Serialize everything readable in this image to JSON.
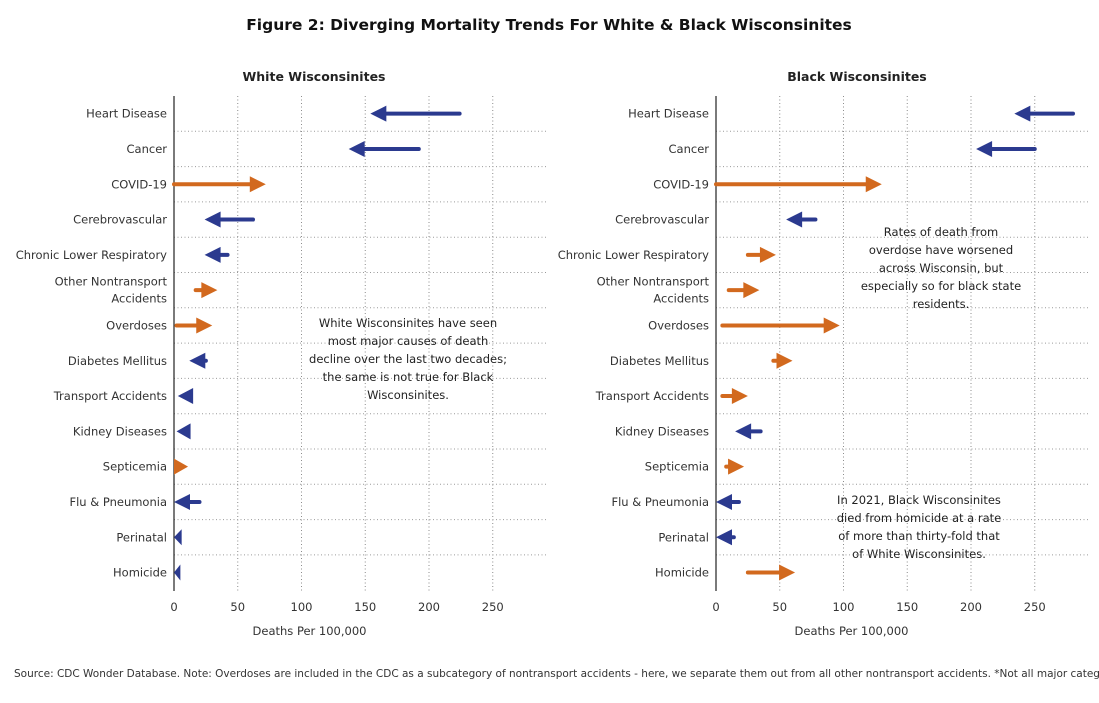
{
  "title": "Figure 2: Diverging Mortality Trends For White & Black Wisconsinites",
  "source": "Source: CDC Wonder Database. Note: Overdoses are included in the CDC as a subcategory of nontransport accidents - here, we separate them out from all other nontransport accidents. *Not all major categori..",
  "colors": {
    "decrease": "#2b3a8f",
    "increase": "#d2691e"
  },
  "chart_data": [
    {
      "type": "arrow",
      "title": "White Wisconsinites",
      "xlabel": "Deaths Per 100,000",
      "xlim": [
        0,
        290
      ],
      "xticks": [
        0,
        50,
        100,
        150,
        200,
        250
      ],
      "grid": true,
      "categories": [
        "Heart Disease",
        "Cancer",
        "COVID-19",
        "Cerebrovascular",
        "Chronic Lower Respiratory",
        "Other Nontransport Accidents",
        "Overdoses",
        "Diabetes Mellitus",
        "Transport Accidents",
        "Kidney Diseases",
        "Septicemia",
        "Flu & Pneumonia",
        "Perinatal",
        "Homicide"
      ],
      "category_lines": [
        [
          "Heart Disease"
        ],
        [
          "Cancer"
        ],
        [
          "COVID-19"
        ],
        [
          "Cerebrovascular"
        ],
        [
          "Chronic Lower Respiratory"
        ],
        [
          "Other Nontransport",
          "Accidents"
        ],
        [
          "Overdoses"
        ],
        [
          "Diabetes Mellitus"
        ],
        [
          "Transport Accidents"
        ],
        [
          "Kidney Diseases"
        ],
        [
          "Septicemia"
        ],
        [
          "Flu & Pneumonia"
        ],
        [
          "Perinatal"
        ],
        [
          "Homicide"
        ]
      ],
      "start": [
        224,
        192,
        0,
        62,
        42,
        17,
        2,
        25,
        15,
        13,
        0,
        20,
        6,
        5
      ],
      "end": [
        154,
        137,
        72,
        24,
        24,
        34,
        30,
        12,
        3,
        2,
        11,
        0,
        0,
        0
      ],
      "annotation": [
        "White Wisconsinites have seen",
        "most major causes of death",
        "decline over the last two decades;",
        "the same is not true for Black",
        "Wisconsinites."
      ]
    },
    {
      "type": "arrow",
      "title": "Black Wisconsinites",
      "xlabel": "Deaths Per 100,000",
      "xlim": [
        0,
        290
      ],
      "xticks": [
        0,
        50,
        100,
        150,
        200,
        250
      ],
      "grid": true,
      "categories": [
        "Heart Disease",
        "Cancer",
        "COVID-19",
        "Cerebrovascular",
        "Chronic Lower Respiratory",
        "Other Nontransport Accidents",
        "Overdoses",
        "Diabetes Mellitus",
        "Transport Accidents",
        "Kidney Diseases",
        "Septicemia",
        "Flu & Pneumonia",
        "Perinatal",
        "Homicide"
      ],
      "category_lines": [
        [
          "Heart Disease"
        ],
        [
          "Cancer"
        ],
        [
          "COVID-19"
        ],
        [
          "Cerebrovascular"
        ],
        [
          "Chronic Lower Respiratory"
        ],
        [
          "Other Nontransport",
          "Accidents"
        ],
        [
          "Overdoses"
        ],
        [
          "Diabetes Mellitus"
        ],
        [
          "Transport Accidents"
        ],
        [
          "Kidney Diseases"
        ],
        [
          "Septicemia"
        ],
        [
          "Flu & Pneumonia"
        ],
        [
          "Perinatal"
        ],
        [
          "Homicide"
        ]
      ],
      "start": [
        280,
        250,
        0,
        78,
        25,
        10,
        5,
        45,
        5,
        35,
        8,
        18,
        14,
        25
      ],
      "end": [
        234,
        204,
        130,
        55,
        47,
        34,
        97,
        60,
        25,
        15,
        22,
        0,
        0,
        62
      ],
      "annotation_top": [
        "Rates of death from",
        "overdose have worsened",
        "across Wisconsin, but",
        "especially so for black state",
        "residents."
      ],
      "annotation_bottom": [
        "In 2021, Black Wisconsinites",
        "died from homicide at a rate",
        "of more than thirty-fold that",
        "of White Wisconsinites."
      ]
    }
  ]
}
